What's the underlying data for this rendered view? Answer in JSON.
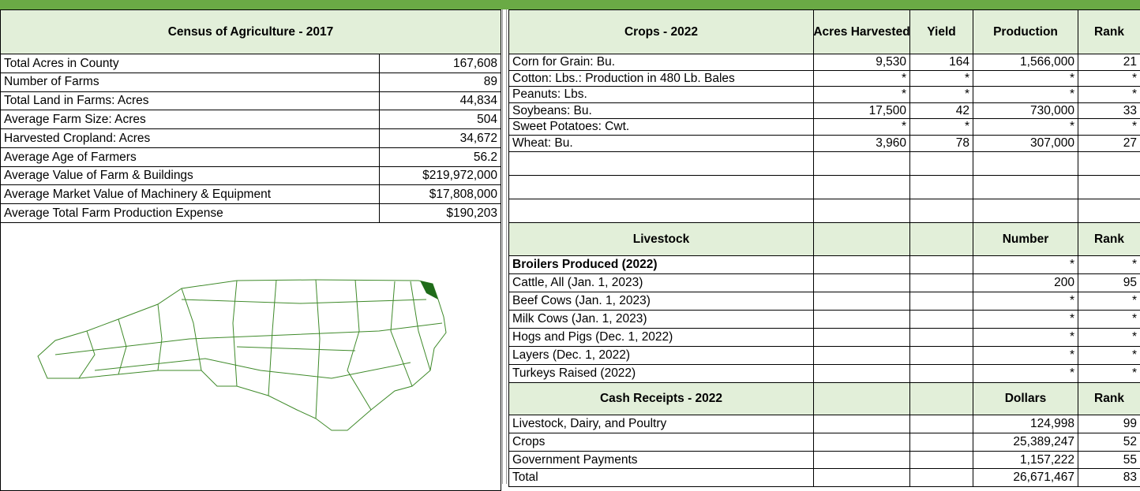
{
  "census": {
    "title": "Census of Agriculture - 2017",
    "rows": [
      [
        "Total Acres in County",
        "167,608"
      ],
      [
        "Number of Farms",
        "89"
      ],
      [
        "Total Land in Farms: Acres",
        "44,834"
      ],
      [
        "Average Farm Size: Acres",
        "504"
      ],
      [
        "Harvested Cropland: Acres",
        "34,672"
      ],
      [
        "Average Age of Farmers",
        "56.2"
      ],
      [
        "Average Value of Farm & Buildings",
        "$219,972,000"
      ],
      [
        "Average Market Value of Machinery & Equipment",
        "$17,808,000"
      ],
      [
        "Average Total Farm Production Expense",
        "$190,203"
      ]
    ]
  },
  "crops": {
    "header": [
      "Crops - 2022",
      "Acres Harvested",
      "Yield",
      "Production",
      "Rank"
    ],
    "rows": [
      [
        "Corn for Grain: Bu.",
        "9,530",
        "164",
        "1,566,000",
        "21"
      ],
      [
        "Cotton: Lbs.: Production in 480 Lb. Bales",
        "*",
        "*",
        "*",
        "*"
      ],
      [
        "Peanuts: Lbs.",
        "*",
        "*",
        "*",
        "*"
      ],
      [
        "Soybeans: Bu.",
        "17,500",
        "42",
        "730,000",
        "33"
      ],
      [
        "Sweet Potatoes: Cwt.",
        "*",
        "*",
        "*",
        "*"
      ],
      [
        "Wheat: Bu.",
        "3,960",
        "78",
        "307,000",
        "27"
      ]
    ]
  },
  "livestock": {
    "header": [
      "Livestock",
      "Number",
      "Rank"
    ],
    "rows": [
      [
        "Broilers Produced (2022)",
        "*",
        "*"
      ],
      [
        "Cattle, All (Jan. 1, 2023)",
        "200",
        "95"
      ],
      [
        "Beef Cows (Jan. 1, 2023)",
        "*",
        "*"
      ],
      [
        "Milk Cows (Jan. 1, 2023)",
        "*",
        "*"
      ],
      [
        "Hogs and Pigs (Dec. 1, 2022)",
        "*",
        "*"
      ],
      [
        "Layers (Dec. 1, 2022)",
        "*",
        "*"
      ],
      [
        "Turkeys Raised (2022)",
        "*",
        "*"
      ]
    ]
  },
  "cash_receipts": {
    "header": [
      "Cash Receipts - 2022",
      "Dollars",
      "Rank"
    ],
    "rows": [
      [
        "Livestock, Dairy, and Poultry",
        "124,998",
        "99"
      ],
      [
        "Crops",
        "25,389,247",
        "52"
      ],
      [
        "Government Payments",
        "1,157,222",
        "55"
      ],
      [
        "Total",
        "26,671,467",
        "83"
      ]
    ]
  }
}
